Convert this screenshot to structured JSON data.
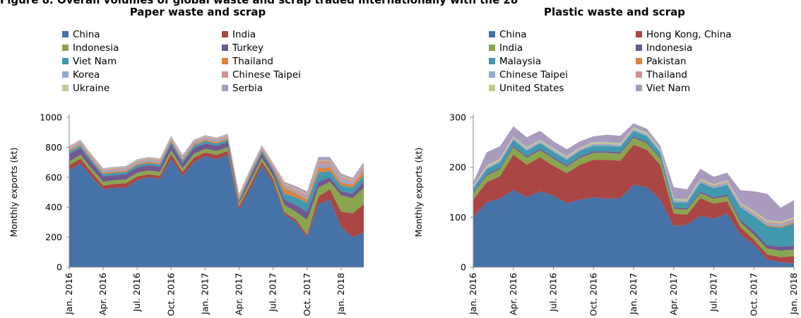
{
  "figure_title": "Figure 8. Overall volumes of global waste and scrap traded internationally with the 28",
  "chart_data": [
    {
      "type": "area",
      "stacked": true,
      "title": "Paper waste and scrap",
      "ylabel": "Monthly exports (kt)",
      "ylim": [
        0,
        1000
      ],
      "yticks": [
        0,
        200,
        400,
        600,
        800,
        1000
      ],
      "x_tick_labels": [
        "Jan. 2016",
        "Apr. 2016",
        "Jul. 2016",
        "Oct. 2016",
        "Jan. 2017",
        "Apr. 2017",
        "Jul. 2017",
        "Oct. 2017",
        "Jan. 2018"
      ],
      "x_tick_months": [
        0,
        3,
        6,
        9,
        12,
        15,
        18,
        21,
        24
      ],
      "x": [
        "2016-01",
        "2016-02",
        "2016-03",
        "2016-04",
        "2016-05",
        "2016-06",
        "2016-07",
        "2016-08",
        "2016-09",
        "2016-10",
        "2016-11",
        "2016-12",
        "2017-01",
        "2017-02",
        "2017-03",
        "2017-04",
        "2017-05",
        "2017-06",
        "2017-07",
        "2017-08",
        "2017-09",
        "2017-10",
        "2017-11",
        "2017-12",
        "2018-01",
        "2018-02",
        "2018-03"
      ],
      "legend_position": "top",
      "series": [
        {
          "name": "China",
          "color": "#4572a7",
          "values": [
            650,
            690,
            600,
            520,
            530,
            530,
            580,
            600,
            590,
            720,
            610,
            700,
            740,
            720,
            750,
            380,
            520,
            680,
            560,
            350,
            300,
            200,
            420,
            450,
            270,
            200,
            230
          ]
        },
        {
          "name": "India",
          "color": "#aa4643",
          "values": [
            30,
            35,
            30,
            25,
            25,
            30,
            25,
            20,
            20,
            35,
            25,
            30,
            25,
            30,
            25,
            25,
            30,
            25,
            25,
            15,
            20,
            15,
            50,
            70,
            100,
            160,
            190
          ]
        },
        {
          "name": "Indonesia",
          "color": "#89a54e",
          "values": [
            25,
            25,
            25,
            25,
            25,
            25,
            25,
            25,
            25,
            25,
            25,
            25,
            25,
            25,
            25,
            20,
            25,
            25,
            25,
            50,
            50,
            100,
            60,
            50,
            110,
            100,
            110
          ]
        },
        {
          "name": "Turkey",
          "color": "#71588f",
          "values": [
            50,
            45,
            40,
            35,
            35,
            35,
            35,
            35,
            35,
            40,
            35,
            40,
            35,
            35,
            35,
            15,
            30,
            30,
            30,
            35,
            45,
            55,
            40,
            30,
            25,
            30,
            40
          ]
        },
        {
          "name": "Viet Nam",
          "color": "#4198af",
          "values": [
            15,
            15,
            15,
            15,
            15,
            15,
            15,
            15,
            15,
            15,
            15,
            15,
            15,
            15,
            15,
            10,
            15,
            15,
            15,
            40,
            50,
            60,
            60,
            40,
            40,
            40,
            40
          ]
        },
        {
          "name": "Thailand",
          "color": "#db843d",
          "values": [
            10,
            10,
            10,
            10,
            10,
            10,
            10,
            10,
            10,
            10,
            10,
            10,
            10,
            10,
            10,
            10,
            10,
            10,
            10,
            40,
            30,
            20,
            30,
            30,
            20,
            20,
            30
          ]
        },
        {
          "name": "Korea",
          "color": "#93a9cf",
          "values": [
            10,
            10,
            10,
            10,
            10,
            10,
            10,
            10,
            10,
            10,
            10,
            10,
            10,
            10,
            10,
            10,
            10,
            10,
            10,
            10,
            10,
            15,
            20,
            15,
            20,
            10,
            15
          ]
        },
        {
          "name": "Chinese Taipei",
          "color": "#d19392",
          "values": [
            10,
            10,
            10,
            10,
            10,
            10,
            10,
            10,
            10,
            10,
            10,
            10,
            10,
            10,
            10,
            10,
            10,
            10,
            10,
            15,
            15,
            20,
            30,
            25,
            20,
            15,
            25
          ]
        },
        {
          "name": "Ukraine",
          "color": "#b9cd96",
          "values": [
            5,
            5,
            5,
            5,
            5,
            5,
            5,
            5,
            5,
            5,
            5,
            5,
            5,
            5,
            5,
            5,
            5,
            5,
            5,
            5,
            5,
            5,
            5,
            5,
            5,
            5,
            5
          ]
        },
        {
          "name": "Serbia",
          "color": "#a99bbd",
          "values": [
            5,
            5,
            5,
            5,
            5,
            5,
            5,
            5,
            5,
            5,
            5,
            5,
            5,
            5,
            5,
            5,
            5,
            5,
            5,
            10,
            15,
            15,
            20,
            20,
            15,
            15,
            15
          ]
        }
      ]
    },
    {
      "type": "area",
      "stacked": true,
      "title": "Plastic waste and scrap",
      "ylabel": "Monthly exports (kt)",
      "ylim": [
        0,
        300
      ],
      "yticks": [
        0,
        100,
        200,
        300
      ],
      "x_tick_labels": [
        "Jan. 2016",
        "Apr. 2016",
        "Jul. 2016",
        "Oct. 2016",
        "Jan. 2017",
        "Apr. 2017",
        "Jul. 2017",
        "Oct. 2017",
        "Jan. 2018"
      ],
      "x_tick_months": [
        0,
        3,
        6,
        9,
        12,
        15,
        18,
        21,
        24
      ],
      "x": [
        "2016-01",
        "2016-02",
        "2016-03",
        "2016-04",
        "2016-05",
        "2016-06",
        "2016-07",
        "2016-08",
        "2016-09",
        "2016-10",
        "2016-11",
        "2016-12",
        "2017-01",
        "2017-02",
        "2017-03",
        "2017-04",
        "2017-05",
        "2017-06",
        "2017-07",
        "2017-08",
        "2017-09",
        "2017-10",
        "2017-11",
        "2017-12",
        "2018-01"
      ],
      "legend_position": "top",
      "series": [
        {
          "name": "China",
          "color": "#4572a7",
          "values": [
            100,
            130,
            137,
            155,
            140,
            152,
            143,
            128,
            135,
            140,
            137,
            138,
            165,
            160,
            135,
            82,
            85,
            103,
            97,
            107,
            65,
            45,
            15,
            10,
            7
          ]
        },
        {
          "name": "Hong Kong, China",
          "color": "#aa4643",
          "values": [
            35,
            40,
            45,
            70,
            65,
            68,
            60,
            60,
            70,
            75,
            78,
            75,
            80,
            75,
            70,
            25,
            20,
            35,
            30,
            25,
            15,
            10,
            10,
            10,
            15
          ]
        },
        {
          "name": "India",
          "color": "#89a54e",
          "values": [
            12,
            13,
            14,
            15,
            14,
            14,
            14,
            13,
            14,
            14,
            14,
            14,
            14,
            13,
            12,
            10,
            10,
            10,
            10,
            10,
            10,
            10,
            12,
            13,
            13
          ]
        },
        {
          "name": "Indonesia",
          "color": "#71588f",
          "values": [
            2,
            3,
            3,
            3,
            3,
            3,
            3,
            3,
            3,
            3,
            3,
            3,
            3,
            3,
            3,
            3,
            3,
            3,
            3,
            3,
            5,
            7,
            7,
            8,
            8
          ]
        },
        {
          "name": "Malaysia",
          "color": "#4198af",
          "values": [
            8,
            10,
            11,
            12,
            11,
            11,
            11,
            11,
            11,
            11,
            11,
            11,
            11,
            11,
            10,
            10,
            11,
            18,
            18,
            20,
            25,
            30,
            38,
            38,
            44
          ]
        },
        {
          "name": "Pakistan",
          "color": "#db843d",
          "values": [
            0,
            0,
            0,
            0,
            0,
            0,
            0,
            0,
            0,
            0,
            0,
            0,
            0,
            0,
            0,
            0,
            0,
            0,
            0,
            0,
            0,
            1,
            2,
            2,
            3
          ]
        },
        {
          "name": "Chinese Taipei",
          "color": "#93a9cf",
          "values": [
            3,
            3,
            3,
            3,
            3,
            3,
            3,
            3,
            3,
            3,
            3,
            3,
            3,
            3,
            3,
            3,
            3,
            3,
            3,
            3,
            3,
            3,
            4,
            4,
            4
          ]
        },
        {
          "name": "Thailand",
          "color": "#d19392",
          "values": [
            1,
            1,
            1,
            1,
            1,
            1,
            1,
            1,
            1,
            1,
            1,
            1,
            1,
            1,
            1,
            1,
            1,
            2,
            2,
            3,
            3,
            3,
            3,
            3,
            3
          ]
        },
        {
          "name": "United States",
          "color": "#b9cd96",
          "values": [
            3,
            3,
            3,
            3,
            3,
            3,
            3,
            3,
            3,
            3,
            3,
            3,
            3,
            3,
            3,
            3,
            3,
            3,
            3,
            3,
            3,
            3,
            3,
            3,
            3
          ]
        },
        {
          "name": "Viet Nam",
          "color": "#a99bbd",
          "values": [
            6,
            27,
            25,
            20,
            20,
            18,
            14,
            14,
            12,
            12,
            15,
            15,
            8,
            8,
            6,
            23,
            20,
            20,
            15,
            15,
            25,
            40,
            53,
            28,
            34
          ]
        }
      ]
    }
  ]
}
